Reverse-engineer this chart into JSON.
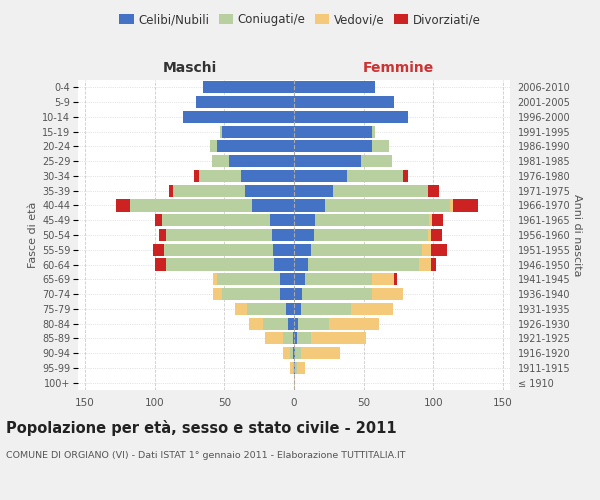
{
  "age_groups": [
    "100+",
    "95-99",
    "90-94",
    "85-89",
    "80-84",
    "75-79",
    "70-74",
    "65-69",
    "60-64",
    "55-59",
    "50-54",
    "45-49",
    "40-44",
    "35-39",
    "30-34",
    "25-29",
    "20-24",
    "15-19",
    "10-14",
    "5-9",
    "0-4"
  ],
  "birth_years": [
    "≤ 1910",
    "1911-1915",
    "1916-1920",
    "1921-1925",
    "1926-1930",
    "1931-1935",
    "1936-1940",
    "1941-1945",
    "1946-1950",
    "1951-1955",
    "1956-1960",
    "1961-1965",
    "1966-1970",
    "1971-1975",
    "1976-1980",
    "1981-1985",
    "1986-1990",
    "1991-1995",
    "1996-2000",
    "2001-2005",
    "2006-2010"
  ],
  "colors": {
    "celibi": "#4472c4",
    "coniugati": "#b8cfa0",
    "vedovi": "#f5c97a",
    "divorziati": "#cc2222"
  },
  "maschi": {
    "celibi": [
      0,
      0,
      1,
      1,
      4,
      6,
      10,
      10,
      14,
      15,
      16,
      17,
      30,
      35,
      38,
      47,
      55,
      52,
      80,
      70,
      65
    ],
    "coniugati": [
      0,
      1,
      2,
      7,
      18,
      28,
      42,
      45,
      78,
      78,
      76,
      78,
      88,
      52,
      30,
      12,
      5,
      1,
      0,
      0,
      0
    ],
    "vedovi": [
      0,
      2,
      5,
      13,
      10,
      8,
      6,
      3,
      0,
      0,
      0,
      0,
      0,
      0,
      0,
      0,
      0,
      0,
      0,
      0,
      0
    ],
    "divorziati": [
      0,
      0,
      0,
      0,
      0,
      0,
      0,
      0,
      8,
      8,
      5,
      5,
      10,
      3,
      4,
      0,
      0,
      0,
      0,
      0,
      0
    ]
  },
  "femmine": {
    "celibi": [
      0,
      1,
      1,
      2,
      3,
      5,
      6,
      8,
      10,
      12,
      14,
      15,
      22,
      28,
      38,
      48,
      56,
      56,
      82,
      72,
      58
    ],
    "coniugati": [
      0,
      1,
      4,
      10,
      22,
      36,
      50,
      48,
      80,
      80,
      82,
      82,
      90,
      68,
      40,
      22,
      12,
      2,
      0,
      0,
      0
    ],
    "vedovi": [
      1,
      6,
      28,
      40,
      36,
      30,
      22,
      16,
      8,
      6,
      2,
      2,
      2,
      0,
      0,
      0,
      0,
      0,
      0,
      0,
      0
    ],
    "divorziati": [
      0,
      0,
      0,
      0,
      0,
      0,
      0,
      2,
      4,
      12,
      8,
      8,
      18,
      8,
      4,
      0,
      0,
      0,
      0,
      0,
      0
    ]
  },
  "title": "Popolazione per età, sesso e stato civile - 2011",
  "subtitle": "COMUNE DI ORGIANO (VI) - Dati ISTAT 1° gennaio 2011 - Elaborazione TUTTITALIA.IT",
  "xlabel_left": "Maschi",
  "xlabel_right": "Femmine",
  "ylabel_left": "Fasce di età",
  "ylabel_right": "Anni di nascita",
  "xlim": 155,
  "background_color": "#f0f0f0",
  "plot_background": "#ffffff",
  "legend_labels": [
    "Celibi/Nubili",
    "Coniugati/e",
    "Vedovi/e",
    "Divorziati/e"
  ]
}
